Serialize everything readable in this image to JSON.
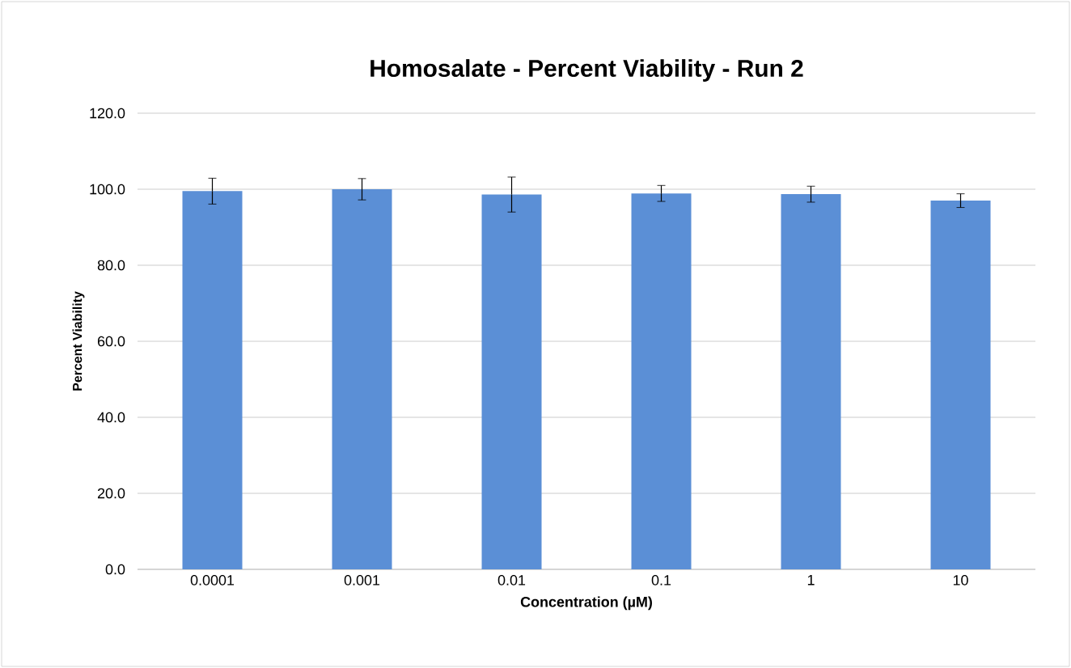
{
  "chart_data": {
    "type": "bar",
    "title": "Homosalate - Percent Viability - Run 2",
    "xlabel": "Concentration (µM)",
    "ylabel": "Percent Viability",
    "categories": [
      "0.0001",
      "0.001",
      "0.01",
      "0.1",
      "1",
      "10"
    ],
    "values": [
      99.5,
      100,
      98.6,
      98.9,
      98.7,
      97.0
    ],
    "errors": [
      3.4,
      2.8,
      4.6,
      2.1,
      2.1,
      1.8
    ],
    "color": "#5b8fd6",
    "ylim": [
      0,
      120
    ],
    "yticks": [
      {
        "value": 0,
        "label": "0.0"
      },
      {
        "value": 20,
        "label": "20.0"
      },
      {
        "value": 40,
        "label": "40.0"
      },
      {
        "value": 60,
        "label": "60.0"
      },
      {
        "value": 80,
        "label": "80.0"
      },
      {
        "value": 100,
        "label": "100.0"
      },
      {
        "value": 120,
        "label": "120.0"
      }
    ],
    "grid": "y"
  }
}
